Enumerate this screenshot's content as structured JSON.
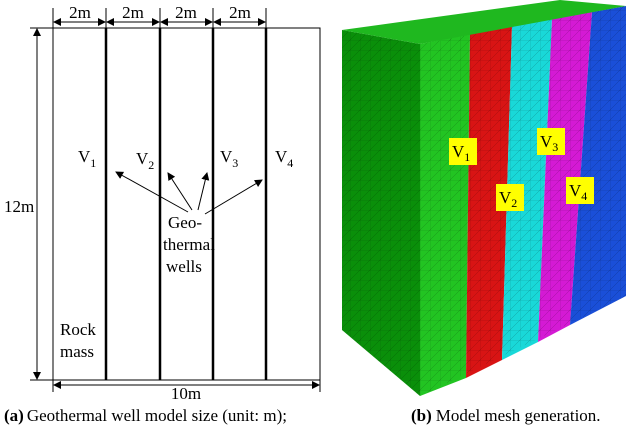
{
  "panel_a": {
    "dimensions": {
      "segments": [
        "2m",
        "2m",
        "2m",
        "2m"
      ],
      "height": "12m",
      "width": "10m"
    },
    "wells": [
      {
        "symbol": "V",
        "index": "1"
      },
      {
        "symbol": "V",
        "index": "2"
      },
      {
        "symbol": "V",
        "index": "3"
      },
      {
        "symbol": "V",
        "index": "4"
      }
    ],
    "callout": [
      "Geo-",
      "thermal",
      "wells"
    ],
    "region": [
      "Rock",
      "mass"
    ],
    "caption": {
      "label": "(a)",
      "text": "Geothermal well model size (unit: m);"
    }
  },
  "panel_b": {
    "wells": [
      {
        "symbol": "V",
        "index": "1"
      },
      {
        "symbol": "V",
        "index": "2"
      },
      {
        "symbol": "V",
        "index": "3"
      },
      {
        "symbol": "V",
        "index": "4"
      }
    ],
    "caption": {
      "label": "(b)",
      "text": "Model mesh generation."
    }
  }
}
